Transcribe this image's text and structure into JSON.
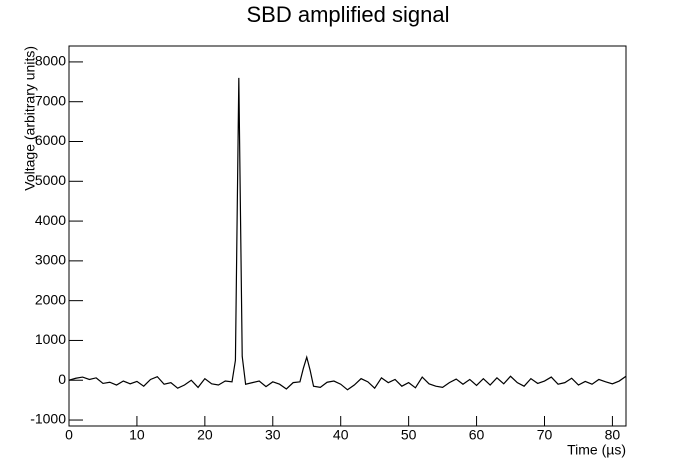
{
  "chart_data": {
    "type": "line",
    "title": "SBD amplified signal",
    "x_label": "Time (µs)",
    "y_label": "Voltage (arbitrary units)",
    "xlim": [
      0,
      82
    ],
    "ylim": [
      -1150,
      8400
    ],
    "xticks": [
      0,
      10,
      20,
      30,
      40,
      50,
      60,
      70,
      80
    ],
    "yticks": [
      -1000,
      0,
      1000,
      2000,
      3000,
      4000,
      5000,
      6000,
      7000,
      8000
    ],
    "grid": false,
    "series": [
      {
        "color": "#000000",
        "x": [
          0,
          1,
          2,
          3,
          4,
          5,
          6,
          7,
          8,
          9,
          10,
          11,
          12,
          13,
          14,
          15,
          16,
          17,
          18,
          19,
          20,
          21,
          22,
          23,
          24,
          24.5,
          25,
          25.5,
          26,
          27,
          28,
          29,
          30,
          31,
          32,
          33,
          34,
          34.5,
          35,
          35.5,
          36,
          37,
          38,
          39,
          40,
          41,
          42,
          43,
          44,
          45,
          46,
          47,
          48,
          49,
          50,
          51,
          52,
          53,
          54,
          55,
          56,
          57,
          58,
          59,
          60,
          61,
          62,
          63,
          64,
          65,
          66,
          67,
          68,
          69,
          70,
          71,
          72,
          73,
          74,
          75,
          76,
          77,
          78,
          79,
          80,
          81,
          82
        ],
        "values": [
          0,
          50,
          80,
          20,
          60,
          -80,
          -50,
          -120,
          -20,
          -90,
          -30,
          -150,
          20,
          90,
          -100,
          -60,
          -200,
          -120,
          0,
          -180,
          40,
          -90,
          -120,
          -20,
          -40,
          500,
          7600,
          600,
          -100,
          -60,
          -20,
          -160,
          -40,
          -100,
          -220,
          -60,
          -40,
          300,
          580,
          250,
          -150,
          -180,
          -50,
          -20,
          -100,
          -240,
          -120,
          40,
          -40,
          -200,
          60,
          -60,
          20,
          -150,
          -60,
          -190,
          80,
          -90,
          -150,
          -180,
          -60,
          30,
          -100,
          20,
          -130,
          40,
          -120,
          60,
          -90,
          100,
          -60,
          -150,
          40,
          -80,
          -20,
          80,
          -100,
          -60,
          50,
          -120,
          -30,
          -100,
          20,
          -40,
          -90,
          -20,
          100
        ]
      }
    ]
  }
}
